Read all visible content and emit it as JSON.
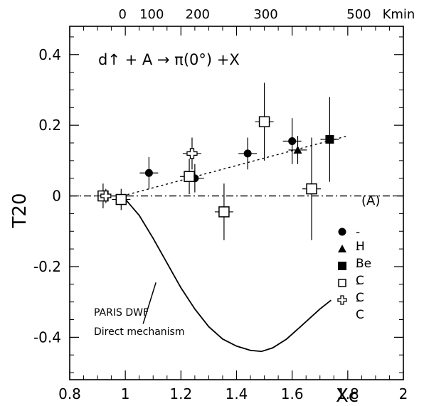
{
  "chart_data": {
    "type": "scatter",
    "title": "d↑ + A → π(0°) +X",
    "xlabel": "Xc",
    "ylabel": "T20",
    "xlim": [
      0.8,
      2.0
    ],
    "ylim": [
      -0.52,
      0.48
    ],
    "x_ticks": [
      "0.8",
      "1",
      "1.2",
      "1.4",
      "1.6",
      "1.8",
      "2"
    ],
    "y_ticks": [
      "-0.4",
      "-0.2",
      "0",
      "0.2",
      "0.4"
    ],
    "top_axis": {
      "unit_label": "Kmin",
      "ticks": [
        {
          "label": "0",
          "x": 0.99
        },
        {
          "label": "100",
          "x": 1.095
        },
        {
          "label": "200",
          "x": 1.26
        },
        {
          "label": "300",
          "x": 1.505
        },
        {
          "label": "500",
          "x": 1.84
        }
      ],
      "tick_label_texts": [
        "0",
        "100",
        "200",
        "300",
        "500"
      ]
    },
    "legend": {
      "title": "(A)",
      "position": "right",
      "entries": [
        "-H",
        "-Be",
        "-C",
        "-C",
        "-C"
      ]
    },
    "series": [
      {
        "name": "-H",
        "marker": "filled-circle",
        "points": [
          {
            "x": 1.085,
            "y": 0.065,
            "err": 0.045
          },
          {
            "x": 1.25,
            "y": 0.05,
            "err": 0.04
          },
          {
            "x": 1.44,
            "y": 0.12,
            "err": 0.045
          },
          {
            "x": 1.6,
            "y": 0.155,
            "err": 0.065
          }
        ]
      },
      {
        "name": "-Be",
        "marker": "filled-triangle",
        "points": [
          {
            "x": 1.62,
            "y": 0.13,
            "err": 0.04
          }
        ]
      },
      {
        "name": "-C",
        "marker": "filled-square",
        "points": [
          {
            "x": 1.735,
            "y": 0.16,
            "err": 0.12
          }
        ]
      },
      {
        "name": "-C",
        "marker": "open-square",
        "points": [
          {
            "x": 0.92,
            "y": 0.0,
            "err": 0.035
          },
          {
            "x": 0.985,
            "y": -0.01,
            "err": 0.03
          },
          {
            "x": 1.23,
            "y": 0.055,
            "err": 0.05
          },
          {
            "x": 1.355,
            "y": -0.045,
            "err": 0.08
          },
          {
            "x": 1.5,
            "y": 0.21,
            "err": 0.11
          },
          {
            "x": 1.67,
            "y": 0.02,
            "err": 0.145
          }
        ]
      },
      {
        "name": "-C",
        "marker": "open-cross",
        "points": [
          {
            "x": 0.93,
            "y": 0.0,
            "err": 0.02
          },
          {
            "x": 1.24,
            "y": 0.12,
            "err": 0.045
          }
        ]
      }
    ],
    "lines": [
      {
        "label": "fit",
        "style": "dotted",
        "x": [
          0.99,
          1.8
        ],
        "y": [
          0.0,
          0.17
        ]
      },
      {
        "label": "zero",
        "style": "dash-dot",
        "x": [
          0.8,
          2.0
        ],
        "y": [
          0.0,
          0.0
        ]
      },
      {
        "label": "PARIS DWF Direct mechanism",
        "style": "solid",
        "x": [
          0.99,
          1.05,
          1.1,
          1.15,
          1.2,
          1.25,
          1.3,
          1.35,
          1.4,
          1.45,
          1.49,
          1.53,
          1.58,
          1.63,
          1.7,
          1.74
        ],
        "y": [
          0.0,
          -0.055,
          -0.12,
          -0.19,
          -0.26,
          -0.32,
          -0.37,
          -0.405,
          -0.425,
          -0.437,
          -0.44,
          -0.43,
          -0.405,
          -0.37,
          -0.32,
          -0.295
        ]
      }
    ],
    "annotation": {
      "lines": [
        "PARIS DWF",
        "Direct mechanism"
      ],
      "x": 1.11,
      "y": -0.245
    }
  }
}
